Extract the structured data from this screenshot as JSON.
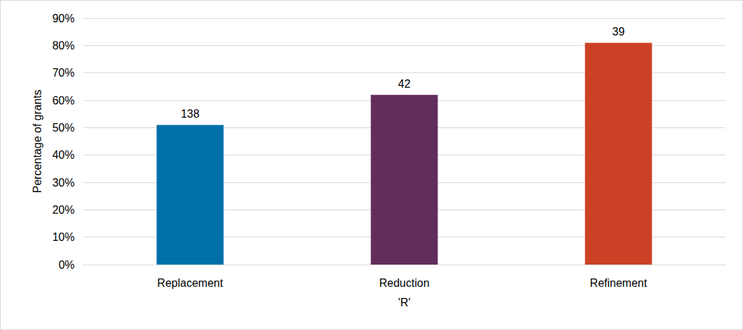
{
  "chart_data": {
    "type": "bar",
    "x_label": "'R'",
    "y_label": "Percentage of grants",
    "categories": [
      "Replacement",
      "Reduction",
      "Refinement"
    ],
    "values": [
      51,
      62,
      81
    ],
    "counts": [
      138,
      42,
      39
    ],
    "colors": [
      "#0070a8",
      "#632d5b",
      "#cc4125"
    ],
    "ylim": [
      0,
      90
    ],
    "yticks": [
      {
        "value": 0,
        "label": "0%"
      },
      {
        "value": 10,
        "label": "10%"
      },
      {
        "value": 20,
        "label": "20%"
      },
      {
        "value": 30,
        "label": "30%"
      },
      {
        "value": 40,
        "label": "40%"
      },
      {
        "value": 50,
        "label": "50%"
      },
      {
        "value": 60,
        "label": "60%"
      },
      {
        "value": 70,
        "label": "70%"
      },
      {
        "value": 80,
        "label": "80%"
      },
      {
        "value": 90,
        "label": "90%"
      }
    ],
    "grid": true
  }
}
